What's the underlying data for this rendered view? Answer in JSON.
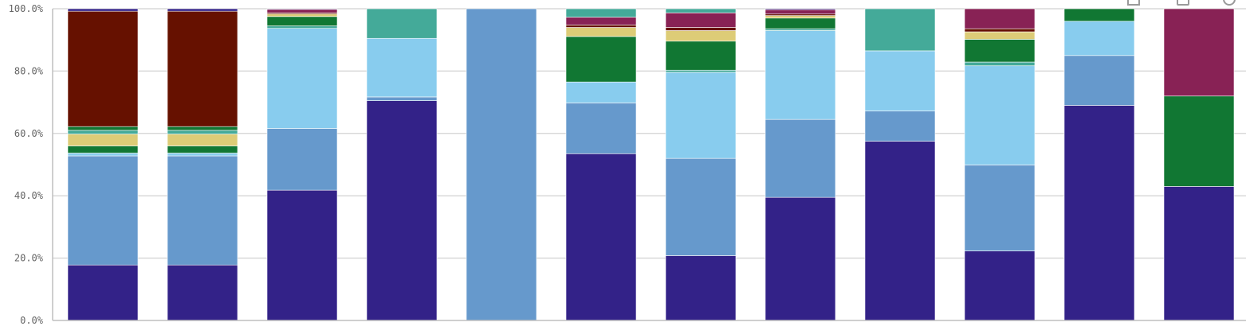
{
  "colors": {
    "background": "#ffffff",
    "gridline": "#d9d9d9",
    "axis": "#bfbfbf",
    "tick_text": "#666666"
  },
  "toolbar": {
    "icons": [
      "selection-icon",
      "menu-icon",
      "info-icon"
    ]
  },
  "chart_data": {
    "type": "bar",
    "stacked": true,
    "percent": true,
    "title": "",
    "xlabel": "",
    "ylabel": "",
    "ylim": [
      0,
      100
    ],
    "y_ticks": [
      "0.0%",
      "20.0%",
      "40.0%",
      "60.0%",
      "80.0%",
      "100.0%"
    ],
    "y_tick_values": [
      0,
      20,
      40,
      60,
      80,
      100
    ],
    "grid": true,
    "categories": [
      "",
      "",
      "",
      "",
      "",
      "",
      "",
      "",
      "",
      "",
      "",
      ""
    ],
    "series": [
      {
        "color": "#332288",
        "values": [
          17.8,
          17.8,
          41.8,
          70.5,
          0,
          53.5,
          20.8,
          39.5,
          57.5,
          22.3,
          69.0,
          43.0
        ]
      },
      {
        "color": "#6699CC",
        "values": [
          35.0,
          35.0,
          19.8,
          1.2,
          100,
          16.3,
          31.2,
          25.0,
          9.7,
          27.6,
          16.0,
          0
        ]
      },
      {
        "color": "#88CCEE",
        "values": [
          0.9,
          0.9,
          32.1,
          18.8,
          0,
          6.7,
          27.6,
          28.5,
          19.3,
          31.8,
          11.0,
          0
        ]
      },
      {
        "color": "#44AA99",
        "values": [
          0,
          0,
          0.8,
          0,
          0,
          0,
          0.7,
          0.6,
          0,
          1.2,
          0,
          0
        ]
      },
      {
        "color": "#117733",
        "values": [
          2.3,
          2.3,
          3.0,
          0,
          0,
          14.6,
          9.3,
          3.4,
          0,
          7.3,
          5.0,
          29.0
        ]
      },
      {
        "color": "#DDCC77",
        "values": [
          3.8,
          3.8,
          0.8,
          0,
          0,
          2.9,
          3.4,
          0.8,
          0,
          2.4,
          0,
          0
        ]
      },
      {
        "color": "#661100",
        "values": [
          0,
          0,
          0.4,
          0,
          0,
          0.8,
          1.0,
          0.5,
          0,
          1.0,
          0,
          0
        ]
      },
      {
        "color": "#882255",
        "values": [
          0,
          0,
          1.1,
          0,
          0,
          2.5,
          4.7,
          1.4,
          0,
          6.4,
          0,
          28.0
        ]
      },
      {
        "color": "#44AA99",
        "values": [
          1.2,
          1.2,
          0,
          9.5,
          0,
          2.7,
          1.3,
          0,
          13.5,
          0,
          0,
          0
        ]
      },
      {
        "color": "#117733",
        "values": [
          1.2,
          1.2,
          0,
          0,
          0,
          0,
          0,
          0,
          0,
          0,
          0,
          0
        ]
      },
      {
        "color": "#661100",
        "values": [
          37.0,
          37.0,
          0,
          0,
          0,
          0,
          0,
          0,
          0,
          0,
          0,
          0
        ]
      },
      {
        "color": "#DDCC77",
        "values": [
          0,
          0,
          0,
          0,
          0,
          1.0,
          0,
          0,
          0,
          0,
          0,
          0
        ]
      },
      {
        "color": "#332288",
        "values": [
          0.8,
          0.8,
          0.2,
          0,
          0,
          0,
          0,
          0.3,
          0,
          0,
          0,
          0
        ]
      }
    ]
  }
}
